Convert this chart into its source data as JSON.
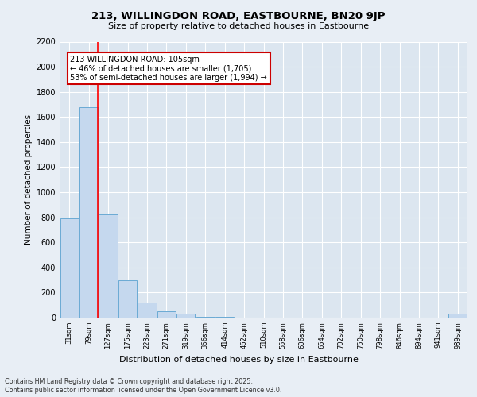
{
  "title": "213, WILLINGDON ROAD, EASTBOURNE, BN20 9JP",
  "subtitle": "Size of property relative to detached houses in Eastbourne",
  "xlabel": "Distribution of detached houses by size in Eastbourne",
  "ylabel": "Number of detached properties",
  "categories": [
    "31sqm",
    "79sqm",
    "127sqm",
    "175sqm",
    "223sqm",
    "271sqm",
    "319sqm",
    "366sqm",
    "414sqm",
    "462sqm",
    "510sqm",
    "558sqm",
    "606sqm",
    "654sqm",
    "702sqm",
    "750sqm",
    "798sqm",
    "846sqm",
    "894sqm",
    "941sqm",
    "989sqm"
  ],
  "values": [
    790,
    1680,
    820,
    300,
    120,
    50,
    30,
    8,
    5,
    3,
    2,
    2,
    2,
    2,
    2,
    2,
    2,
    2,
    2,
    2,
    30
  ],
  "bar_color": "#c5d8ee",
  "bar_edge_color": "#6aaad4",
  "red_line_x": 1.46,
  "annotation_text": "213 WILLINGDON ROAD: 105sqm\n← 46% of detached houses are smaller (1,705)\n53% of semi-detached houses are larger (1,994) →",
  "annotation_box_color": "#ffffff",
  "annotation_box_edge": "#cc0000",
  "ylim": [
    0,
    2200
  ],
  "yticks": [
    0,
    200,
    400,
    600,
    800,
    1000,
    1200,
    1400,
    1600,
    1800,
    2000,
    2200
  ],
  "footer1": "Contains HM Land Registry data © Crown copyright and database right 2025.",
  "footer2": "Contains public sector information licensed under the Open Government Licence v3.0.",
  "bg_color": "#e8eef5",
  "plot_bg_color": "#dce6f0"
}
